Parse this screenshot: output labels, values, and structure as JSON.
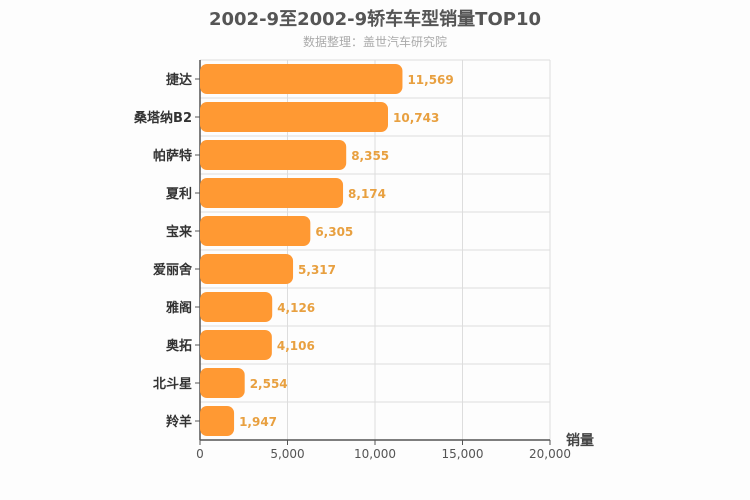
{
  "chart_data": {
    "type": "bar",
    "orientation": "horizontal",
    "title": "2002-9至2002-9轿车车型销量TOP10",
    "subtitle": "数据整理：盖世汽车研究院",
    "xlabel": "销量",
    "ylabel": "",
    "categories": [
      "捷达",
      "桑塔纳B2",
      "帕萨特",
      "夏利",
      "宝来",
      "爱丽舍",
      "雅阁",
      "奥拓",
      "北斗星",
      "羚羊"
    ],
    "values": [
      11569,
      10743,
      8355,
      8174,
      6305,
      5317,
      4126,
      4106,
      2554,
      1947
    ],
    "value_labels": [
      "11,569",
      "10,743",
      "8,355",
      "8,174",
      "6,305",
      "5,317",
      "4,126",
      "4,106",
      "2,554",
      "1,947"
    ],
    "xlim": [
      0,
      20000
    ],
    "x_ticks": [
      0,
      5000,
      10000,
      15000,
      20000
    ],
    "x_tick_labels": [
      "0",
      "5,000",
      "10,000",
      "15,000",
      "20,000"
    ],
    "grid": true,
    "legend": "none",
    "colors": {
      "bar": "#ff9933",
      "value_label": "#e8a040",
      "grid": "#dddddd",
      "axis": "#555555",
      "category_label": "#333333"
    }
  }
}
